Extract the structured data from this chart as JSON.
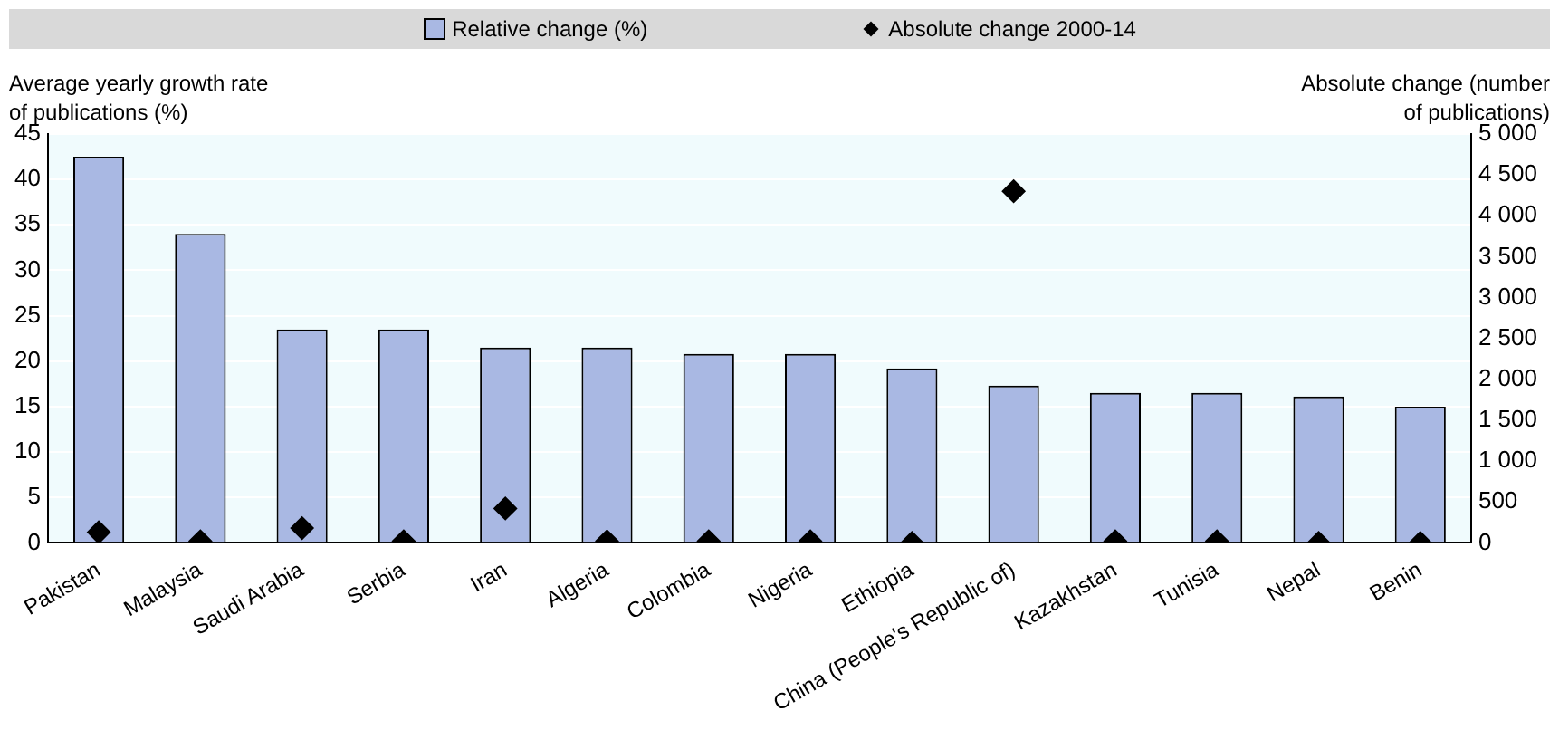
{
  "chart_data": {
    "type": "bar",
    "ylabel": "Average yearly growth rate of publications (%)",
    "y2label": "Absolute change (number of publications)",
    "categories": [
      "Pakistan",
      "Malaysia",
      "Saudi Arabia",
      "Serbia",
      "Iran",
      "Algeria",
      "Colombia",
      "Nigeria",
      "Ethiopia",
      "China (People's Republic of)",
      "Kazakhstan",
      "Tunisia",
      "Nepal",
      "Benin"
    ],
    "series": [
      {
        "name": "Relative change (%)",
        "color": "#a9b8e3",
        "values": [
          42.5,
          34,
          23.5,
          23.5,
          21.5,
          21.5,
          20.8,
          20.8,
          19.2,
          17.3,
          16.5,
          16.5,
          16.1,
          15
        ]
      },
      {
        "name": "Absolute change 2000-14",
        "type": "scatter",
        "axis": "y2",
        "marker": "diamond",
        "color": "#000000",
        "values": [
          130,
          20,
          180,
          20,
          420,
          20,
          20,
          20,
          0,
          4300,
          20,
          20,
          0,
          0
        ]
      }
    ],
    "ylim": [
      0,
      45
    ],
    "yticks": [
      0,
      5,
      10,
      15,
      20,
      25,
      30,
      35,
      40,
      45
    ],
    "y2lim": [
      0,
      5000
    ],
    "y2ticks": [
      0,
      {
        "value": 500,
        "label": "500"
      },
      {
        "value": 1000,
        "label": "1 000"
      },
      {
        "value": 1500,
        "label": "1 500"
      },
      {
        "value": 2000,
        "label": "2 000"
      },
      {
        "value": 2500,
        "label": "2 500"
      },
      {
        "value": 3000,
        "label": "3 000"
      },
      {
        "value": 3500,
        "label": "3 500"
      },
      {
        "value": 4000,
        "label": "4 000"
      },
      {
        "value": 4500,
        "label": "4 500"
      },
      {
        "value": 5000,
        "label": "5 000"
      }
    ],
    "grid": "y",
    "legend": "top"
  }
}
